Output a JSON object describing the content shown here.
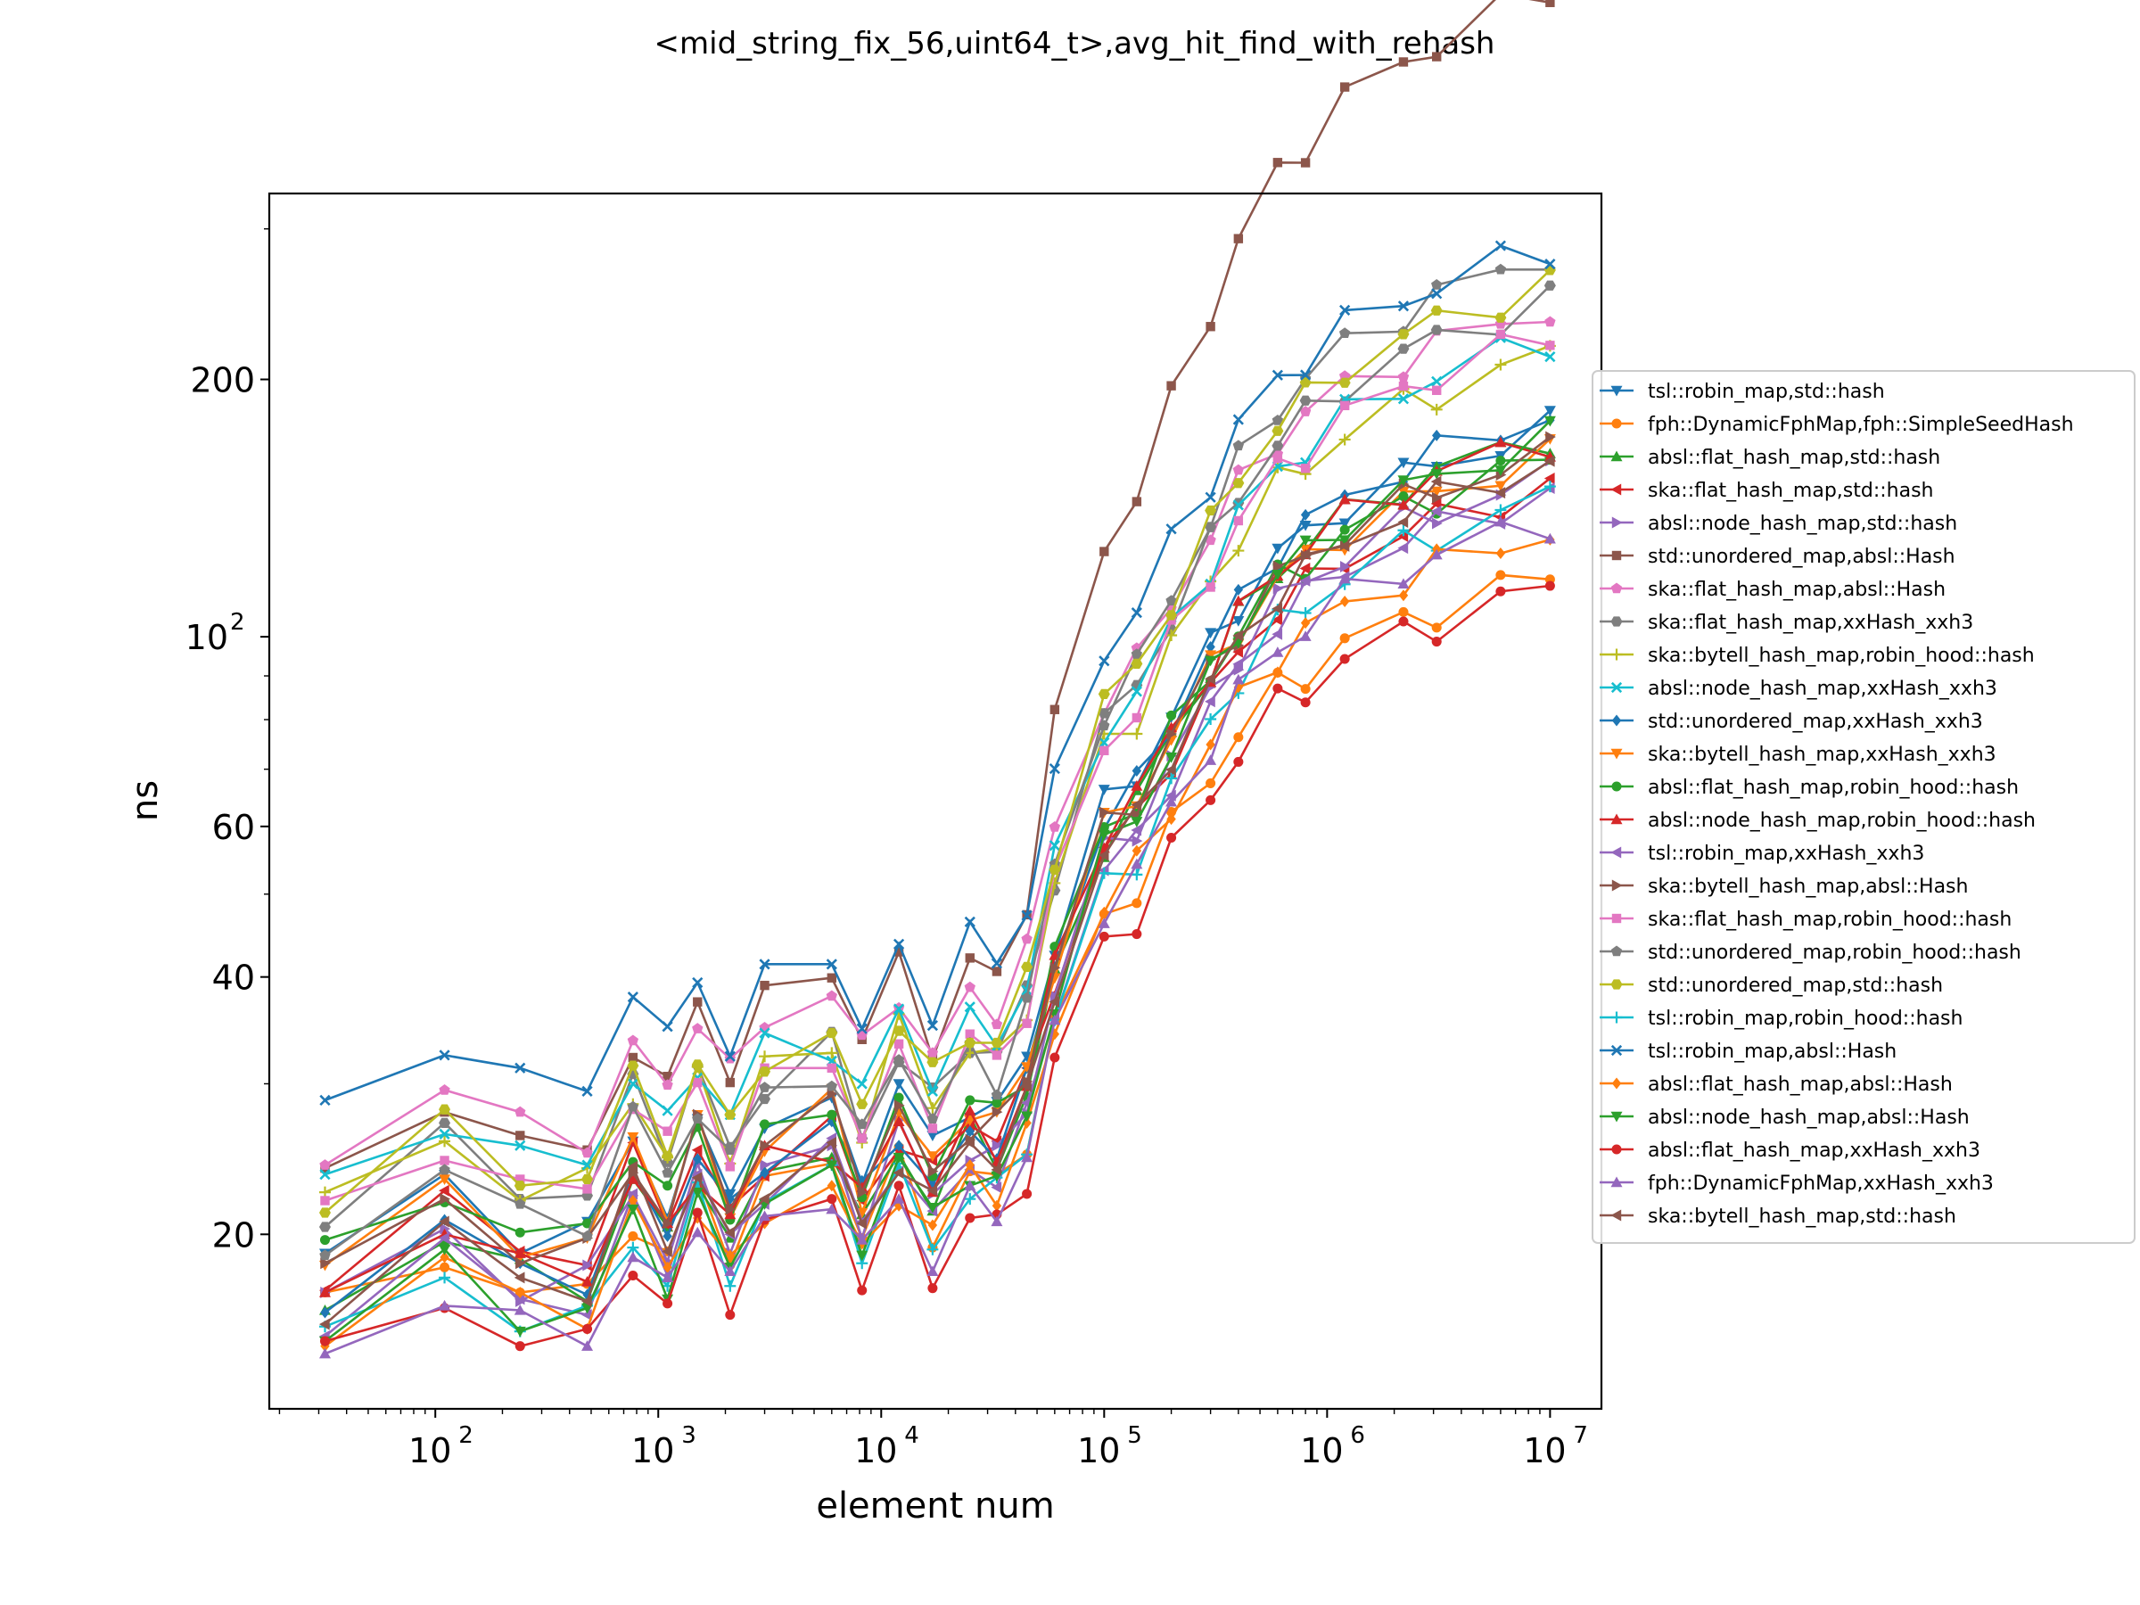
{
  "chart_data": {
    "type": "line",
    "title": "<mid_string_fix_56,uint64_t>,avg_hit_find_with_rehash",
    "xlabel": "element num",
    "ylabel": "ns",
    "xscale": "log",
    "yscale": "log",
    "xlim": [
      18,
      17000000
    ],
    "ylim": [
      12.5,
      330
    ],
    "x_ticks": [
      {
        "value": 100,
        "base": "10",
        "exp": "2"
      },
      {
        "value": 1000,
        "base": "10",
        "exp": "3"
      },
      {
        "value": 10000,
        "base": "10",
        "exp": "4"
      },
      {
        "value": 100000,
        "base": "10",
        "exp": "5"
      },
      {
        "value": 1000000,
        "base": "10",
        "exp": "6"
      },
      {
        "value": 10000000,
        "base": "10",
        "exp": "7"
      }
    ],
    "y_ticks": [
      {
        "value": 20,
        "base": "20",
        "exp": ""
      },
      {
        "value": 40,
        "base": "40",
        "exp": ""
      },
      {
        "value": 60,
        "base": "60",
        "exp": ""
      },
      {
        "value": 100,
        "base": "10",
        "exp": "2"
      },
      {
        "value": 200,
        "base": "200",
        "exp": ""
      }
    ],
    "grid": false,
    "legend_position": "right",
    "x": [
      32,
      110,
      240,
      480,
      770,
      1100,
      1500,
      2100,
      3000,
      6000,
      8200,
      12000,
      17000,
      25000,
      33000,
      45000,
      60000,
      100000,
      140000,
      200000,
      300000,
      400000,
      600000,
      800000,
      1200000,
      2200000,
      3100000,
      6000000,
      10000000
    ],
    "series": [
      {
        "name": "tsl::robin_map,std::hash",
        "color": "#1f77b4",
        "marker": "tri_down",
        "base": 19.0,
        "amp": 0.9
      },
      {
        "name": "fph::DynamicFphMap,fph::SimpleSeedHash",
        "color": "#ff7f0e",
        "marker": "circle",
        "base": 16.3,
        "amp": 0.8
      },
      {
        "name": "absl::flat_hash_map,std::hash",
        "color": "#2ca02c",
        "marker": "tri_up",
        "base": 16.5,
        "amp": 0.95
      },
      {
        "name": "ska::flat_hash_map,std::hash",
        "color": "#d62728",
        "marker": "tri_left",
        "base": 18.0,
        "amp": 0.86
      },
      {
        "name": "absl::node_hash_map,std::hash",
        "color": "#9467bd",
        "marker": "tri_right",
        "base": 16.7,
        "amp": 0.9
      },
      {
        "name": "std::unordered_map,absl::Hash",
        "color": "#8c564b",
        "marker": "square",
        "base": 23.0,
        "amp": 1.3
      },
      {
        "name": "ska::flat_hash_map,absl::Hash",
        "color": "#e377c2",
        "marker": "pentagon",
        "base": 25.0,
        "amp": 0.92
      },
      {
        "name": "ska::flat_hash_map,xxHash_xxh3",
        "color": "#7f7f7f",
        "marker": "hexagon",
        "base": 21.0,
        "amp": 1.0
      },
      {
        "name": "ska::bytell_hash_map,robin_hood::hash",
        "color": "#bcbd22",
        "marker": "plus",
        "base": 21.5,
        "amp": 0.93
      },
      {
        "name": "absl::node_hash_map,xxHash_xxh3",
        "color": "#17becf",
        "marker": "x",
        "base": 23.0,
        "amp": 0.92
      },
      {
        "name": "std::unordered_map,xxHash_xxh3",
        "color": "#1f77b4",
        "marker": "diamond",
        "base": 17.0,
        "amp": 0.96
      },
      {
        "name": "ska::bytell_hash_map,xxHash_xxh3",
        "color": "#ff7f0e",
        "marker": "tri_down",
        "base": 18.5,
        "amp": 0.88
      },
      {
        "name": "absl::flat_hash_map,robin_hood::hash",
        "color": "#2ca02c",
        "marker": "circle",
        "base": 18.8,
        "amp": 0.87
      },
      {
        "name": "absl::node_hash_map,robin_hood::hash",
        "color": "#d62728",
        "marker": "tri_up",
        "base": 17.2,
        "amp": 0.93
      },
      {
        "name": "tsl::robin_map,xxHash_xxh3",
        "color": "#9467bd",
        "marker": "tri_left",
        "base": 16.0,
        "amp": 0.9
      },
      {
        "name": "ska::bytell_hash_map,absl::Hash",
        "color": "#8c564b",
        "marker": "tri_right",
        "base": 18.2,
        "amp": 0.89
      },
      {
        "name": "ska::flat_hash_map,robin_hood::hash",
        "color": "#e377c2",
        "marker": "square",
        "base": 21.0,
        "amp": 0.96
      },
      {
        "name": "std::unordered_map,robin_hood::hash",
        "color": "#7f7f7f",
        "marker": "pentagon",
        "base": 19.5,
        "amp": 1.08
      },
      {
        "name": "std::unordered_map,std::hash",
        "color": "#bcbd22",
        "marker": "hexagon",
        "base": 22.0,
        "amp": 1.0
      },
      {
        "name": "tsl::robin_map,robin_hood::hash",
        "color": "#17becf",
        "marker": "plus",
        "base": 15.0,
        "amp": 0.92
      },
      {
        "name": "tsl::robin_map,absl::Hash",
        "color": "#1f77b4",
        "marker": "x",
        "base": 28.0,
        "amp": 0.94
      },
      {
        "name": "absl::flat_hash_map,absl::Hash",
        "color": "#ff7f0e",
        "marker": "diamond",
        "base": 15.5,
        "amp": 0.87
      },
      {
        "name": "absl::node_hash_map,absl::Hash",
        "color": "#2ca02c",
        "marker": "tri_down",
        "base": 15.2,
        "amp": 0.98
      },
      {
        "name": "absl::flat_hash_map,xxHash_xxh3",
        "color": "#d62728",
        "marker": "circle",
        "base": 14.3,
        "amp": 0.84
      },
      {
        "name": "fph::DynamicFphMap,xxHash_xxh3",
        "color": "#9467bd",
        "marker": "tri_up",
        "base": 14.5,
        "amp": 0.91
      },
      {
        "name": "ska::bytell_hash_map,std::hash",
        "color": "#8c564b",
        "marker": "tri_left",
        "base": 16.5,
        "amp": 0.92
      }
    ]
  }
}
